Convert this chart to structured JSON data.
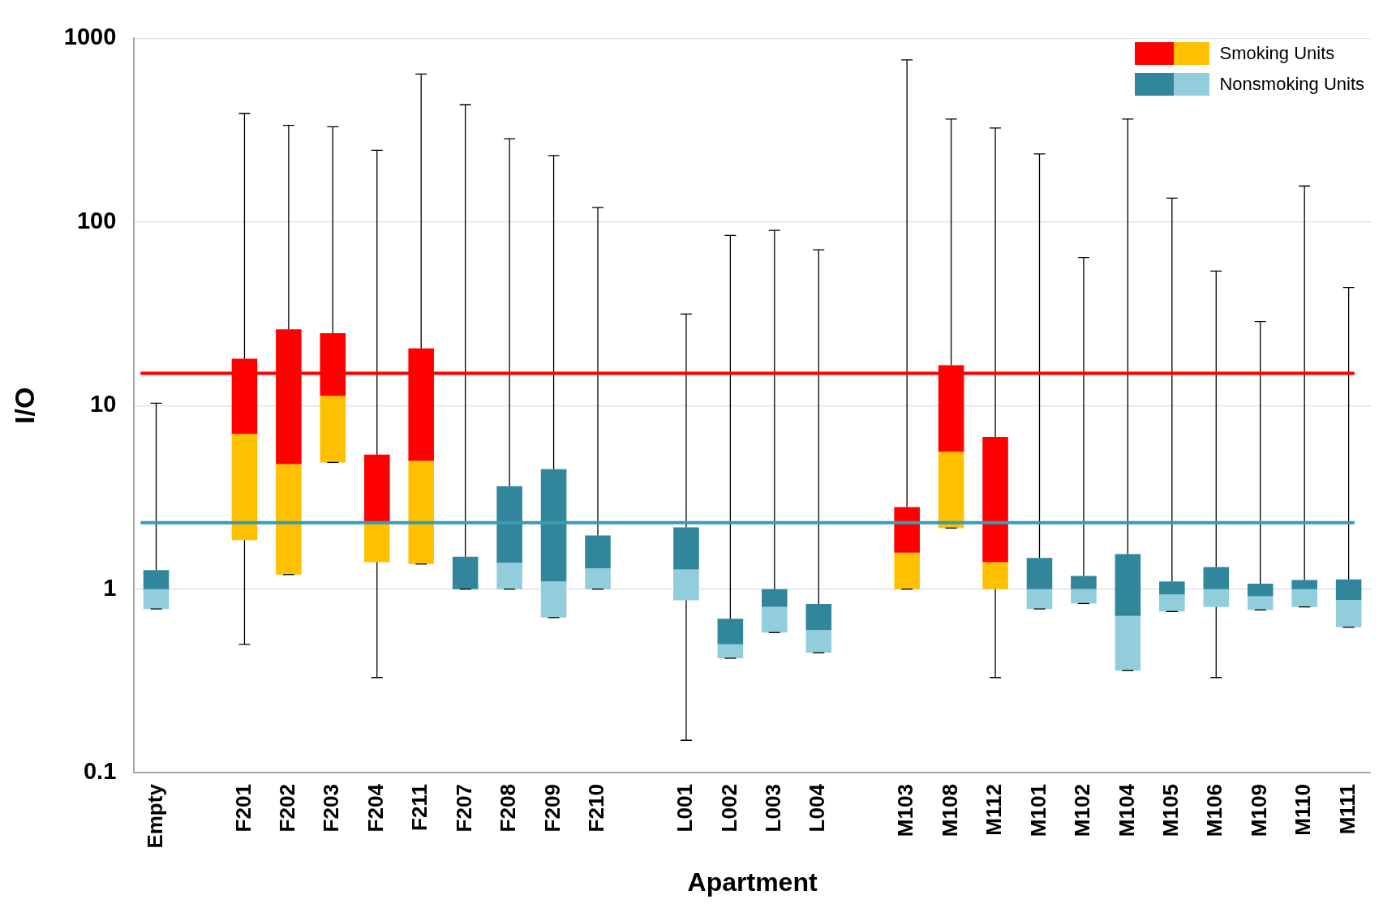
{
  "chart_data": {
    "type": "box",
    "xlabel": "Apartment",
    "ylabel": "I/O",
    "categories": [
      "Empty",
      null,
      "F201",
      "F202",
      "F203",
      "F204",
      "F211",
      "F207",
      "F208",
      "F209",
      "F210",
      null,
      "L001",
      "L002",
      "L003",
      "L004",
      null,
      "M103",
      "M108",
      "M112",
      "M101",
      "M102",
      "M104",
      "M105",
      "M106",
      "M109",
      "M110",
      "M111"
    ],
    "series": [
      {
        "name": "Smoking Units",
        "color": "#ff0000",
        "colors": [
          null,
          null,
          "#ffc000",
          "#ffc000",
          "#ffc000",
          "#ffc000",
          "#ffc000",
          null,
          null,
          null,
          null,
          null,
          null,
          null,
          null,
          null,
          null,
          "#ffc000",
          "#ffc000",
          "#ffc000",
          null,
          null,
          null,
          null,
          null,
          null,
          null,
          null
        ],
        "boxes": [
          null,
          null,
          {
            "low": 0.5,
            "q1": 1.85,
            "median": 7,
            "q3": 18,
            "high": 390
          },
          {
            "low": 1.2,
            "q1": 1.2,
            "median": 4.8,
            "q3": 26,
            "high": 336
          },
          {
            "low": 4.9,
            "q1": 4.9,
            "median": 11.3,
            "q3": 24.8,
            "high": 330
          },
          {
            "low": 0.33,
            "q1": 1.4,
            "median": 2.3,
            "q3": 5.4,
            "high": 246
          },
          {
            "low": 1.37,
            "q1": 1.37,
            "median": 5,
            "q3": 20.5,
            "high": 640
          },
          null,
          null,
          null,
          null,
          null,
          null,
          null,
          null,
          null,
          null,
          {
            "low": 1,
            "q1": 1,
            "median": 1.58,
            "q3": 2.8,
            "high": 764
          },
          {
            "low": 2.15,
            "q1": 2.15,
            "median": 5.6,
            "q3": 16.6,
            "high": 364
          },
          {
            "low": 0.33,
            "q1": 1,
            "median": 1.4,
            "q3": 6.75,
            "high": 325
          },
          null,
          null,
          null,
          null,
          null,
          null,
          null,
          null
        ]
      },
      {
        "name": "Nonsmoking Units",
        "color": "#31869b",
        "colors": [
          "#92cddc",
          null,
          null,
          null,
          null,
          null,
          null,
          null,
          "#92cddc",
          "#92cddc",
          "#92cddc",
          null,
          "#92cddc",
          "#92cddc",
          "#92cddc",
          "#92cddc",
          null,
          null,
          null,
          null,
          "#92cddc",
          "#92cddc",
          "#92cddc",
          "#92cddc",
          "#92cddc",
          "#92cddc",
          "#92cddc",
          "#92cddc"
        ],
        "boxes": [
          {
            "low": 0.78,
            "q1": 0.78,
            "median": 1,
            "q3": 1.27,
            "high": 10.3
          },
          null,
          null,
          null,
          null,
          null,
          null,
          {
            "low": 1,
            "q1": 1,
            "median": 1,
            "q3": 1.5,
            "high": 435
          },
          {
            "low": 1,
            "q1": 1,
            "median": 1.39,
            "q3": 3.64,
            "high": 284
          },
          {
            "low": 0.7,
            "q1": 0.7,
            "median": 1.1,
            "q3": 4.5,
            "high": 230
          },
          {
            "low": 1,
            "q1": 1,
            "median": 1.3,
            "q3": 1.96,
            "high": 120
          },
          null,
          {
            "low": 0.15,
            "q1": 0.87,
            "median": 1.28,
            "q3": 2.17,
            "high": 31.5
          },
          {
            "low": 0.42,
            "q1": 0.42,
            "median": 0.5,
            "q3": 0.69,
            "high": 84.5
          },
          {
            "low": 0.58,
            "q1": 0.58,
            "median": 0.8,
            "q3": 1,
            "high": 90
          },
          {
            "low": 0.45,
            "q1": 0.45,
            "median": 0.6,
            "q3": 0.83,
            "high": 70.6
          },
          null,
          null,
          null,
          null,
          {
            "low": 0.78,
            "q1": 0.78,
            "median": 1,
            "q3": 1.48,
            "high": 235
          },
          {
            "low": 0.835,
            "q1": 0.835,
            "median": 1,
            "q3": 1.18,
            "high": 64
          },
          {
            "low": 0.36,
            "q1": 0.36,
            "median": 0.714,
            "q3": 1.55,
            "high": 364
          },
          {
            "low": 0.755,
            "q1": 0.755,
            "median": 0.935,
            "q3": 1.1,
            "high": 135
          },
          {
            "low": 0.33,
            "q1": 0.8,
            "median": 1,
            "q3": 1.32,
            "high": 54
          },
          {
            "low": 0.77,
            "q1": 0.77,
            "median": 0.914,
            "q3": 1.07,
            "high": 28.7
          },
          {
            "low": 0.8,
            "q1": 0.8,
            "median": 1,
            "q3": 1.12,
            "high": 157
          },
          {
            "low": 0.62,
            "q1": 0.62,
            "median": 0.874,
            "q3": 1.13,
            "high": 44
          }
        ]
      }
    ],
    "ylim": [
      0.1,
      1000
    ],
    "yticks": [
      0.1,
      1,
      10,
      100,
      1000
    ],
    "log": true,
    "grid": "y",
    "legend": "top right",
    "ref_lines": [
      {
        "axis": "y",
        "value": 15,
        "color": "#ff0000"
      },
      {
        "axis": "y",
        "value": 2.3,
        "color": "#3a9cb4"
      }
    ]
  }
}
